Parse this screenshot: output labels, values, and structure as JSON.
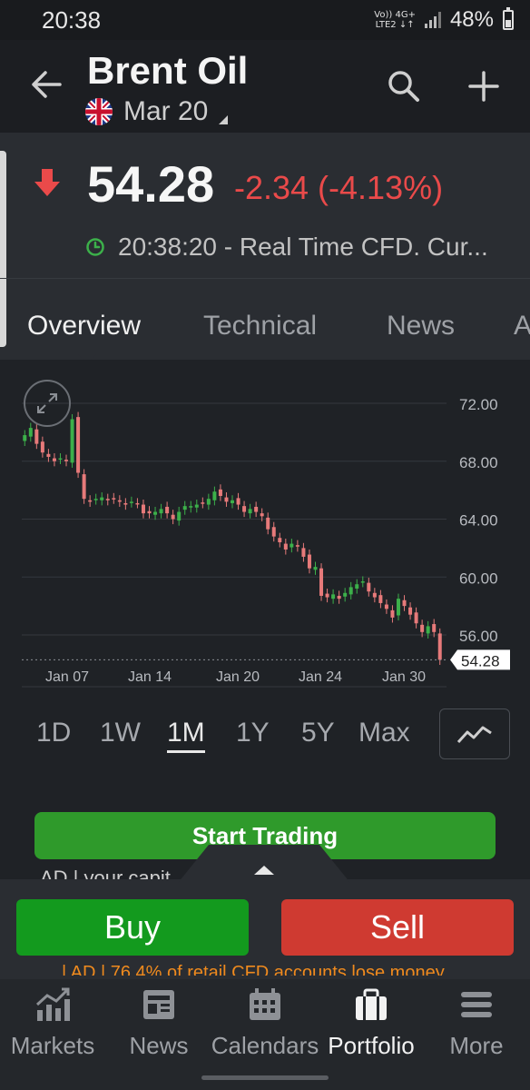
{
  "status_bar": {
    "time": "20:38",
    "net_top": "Vo)) 4G+",
    "net_bottom": "LTE2 ↓↑",
    "battery": "48%"
  },
  "header": {
    "title": "Brent Oil",
    "expiry": "Mar 20"
  },
  "quote": {
    "price": "54.28",
    "change": "-2.34 (-4.13%)",
    "time": "20:38:20",
    "source": "- Real Time CFD. Cur..."
  },
  "tabs": [
    "Overview",
    "Technical",
    "News",
    "A"
  ],
  "chart_data": {
    "type": "candlestick",
    "x_ticks": [
      "Jan 07",
      "Jan 14",
      "Jan 20",
      "Jan 24",
      "Jan 30"
    ],
    "y_ticks": [
      "72.00",
      "68.00",
      "64.00",
      "60.00",
      "56.00"
    ],
    "ylim": [
      53.5,
      73
    ],
    "last_price_label": "54.28",
    "last_price": 54.28,
    "closes": [
      69.8,
      70.3,
      69.2,
      68.6,
      68.3,
      68.0,
      68.2,
      68.0,
      70.9,
      67.2,
      65.4,
      65.2,
      65.4,
      65.5,
      65.3,
      65.4,
      65.2,
      65.0,
      65.2,
      65.1,
      64.4,
      64.4,
      64.5,
      64.7,
      64.4,
      64.0,
      64.5,
      64.9,
      64.9,
      65.0,
      65.1,
      65.4,
      65.9,
      65.6,
      65.2,
      65.3,
      65.0,
      64.5,
      64.7,
      64.5,
      64.2,
      63.3,
      62.8,
      62.4,
      61.9,
      62.3,
      62.1,
      61.4,
      60.6,
      60.7,
      58.7,
      58.6,
      58.8,
      58.5,
      58.9,
      59.3,
      59.5,
      59.7,
      59.0,
      58.6,
      58.2,
      57.8,
      57.2,
      58.5,
      58.0,
      57.4,
      56.8,
      56.2,
      56.6,
      56.2,
      54.28
    ]
  },
  "ranges": [
    "1D",
    "1W",
    "1M",
    "1Y",
    "5Y",
    "Max"
  ],
  "active_range": "1M",
  "start_trading": "Start Trading",
  "ad_text": "AD | your capit...",
  "trade": {
    "buy": "Buy",
    "sell": "Sell",
    "risk": "| AD | 76.4% of retail CFD accounts lose money"
  },
  "nav": [
    {
      "label": "Markets",
      "icon": "markets-icon"
    },
    {
      "label": "News",
      "icon": "news-icon"
    },
    {
      "label": "Calendars",
      "icon": "calendar-icon"
    },
    {
      "label": "Portfolio",
      "icon": "briefcase-icon"
    },
    {
      "label": "More",
      "icon": "menu-icon"
    }
  ],
  "colors": {
    "up": "#3cb04a",
    "down": "#e77a7a",
    "change_red": "#ea4a4a",
    "buy": "#139a1e",
    "sell": "#cf3a31",
    "accent_green": "#2f9a2b"
  }
}
